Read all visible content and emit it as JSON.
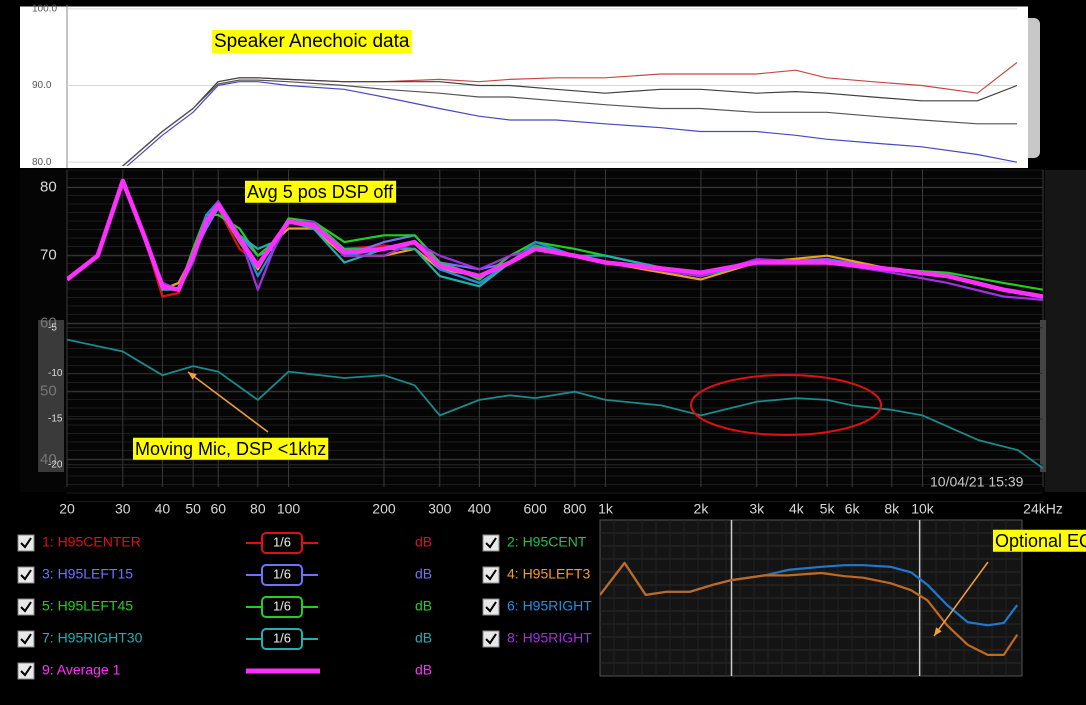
{
  "chart_data": [
    {
      "type": "line",
      "title": "Speaker  Anechoic data",
      "xscale": "log",
      "xlim": [
        20,
        20000
      ],
      "ylim": [
        79.5,
        100.5
      ],
      "yticks": [
        {
          "value": 100,
          "label": "100.0"
        },
        {
          "value": 90,
          "label": "90.0"
        },
        {
          "value": 80,
          "label": "80.0"
        }
      ],
      "x": [
        20,
        30,
        40,
        50,
        60,
        70,
        80,
        100,
        150,
        200,
        300,
        400,
        500,
        700,
        1000,
        1500,
        2000,
        3000,
        4000,
        5000,
        7000,
        10000,
        15000,
        20000
      ],
      "series": [
        {
          "color": "#c84848",
          "values": [
            76,
            79.5,
            84,
            87,
            90.5,
            91,
            91,
            90.8,
            90.5,
            90.5,
            90.8,
            90.5,
            90.8,
            91,
            91,
            91.5,
            91.5,
            91.5,
            92,
            91,
            90.5,
            90,
            89,
            93
          ]
        },
        {
          "color": "#404040",
          "values": [
            76,
            79.5,
            84,
            87,
            90.5,
            91,
            91,
            90.8,
            90.5,
            90.5,
            90.5,
            90,
            90,
            89.5,
            89,
            89.5,
            89.5,
            89,
            89.2,
            89,
            88.5,
            88,
            88,
            90
          ]
        },
        {
          "color": "#555555",
          "values": [
            76,
            79.5,
            84,
            87,
            90.2,
            90.7,
            90.7,
            90.5,
            90,
            89.5,
            89,
            88.5,
            88.5,
            88,
            87.5,
            87,
            87,
            86.5,
            86.5,
            86.5,
            86,
            85.5,
            85,
            85
          ]
        },
        {
          "color": "#4848c0",
          "values": [
            76,
            79,
            83.5,
            86.5,
            90,
            90.5,
            90.5,
            90,
            89.5,
            88.5,
            87,
            86,
            85.5,
            85.5,
            85,
            84.5,
            84,
            84,
            83.5,
            83,
            82.5,
            82,
            81,
            80
          ]
        }
      ]
    },
    {
      "type": "line",
      "annotation": "Avg 5 pos DSP off",
      "timestamp": "10/04/21 15:39",
      "xscale": "log",
      "xlim": [
        20,
        24000
      ],
      "ylim": [
        36,
        82.6
      ],
      "yticks": [
        80,
        70,
        60,
        50,
        40
      ],
      "xticks": [
        20,
        30,
        40,
        50,
        60,
        80,
        100,
        200,
        300,
        400,
        600,
        800,
        {
          "value": 1000,
          "label": "1k"
        },
        {
          "value": 2000,
          "label": "2k"
        },
        {
          "value": 3000,
          "label": "3k"
        },
        {
          "value": 4000,
          "label": "4k"
        },
        {
          "value": 5000,
          "label": "5k"
        },
        {
          "value": 6000,
          "label": "6k"
        },
        {
          "value": 8000,
          "label": "8k"
        },
        {
          "value": 10000,
          "label": "10k"
        },
        {
          "value": 24000,
          "label": "24kHz"
        }
      ],
      "grid": true,
      "x": [
        20,
        25,
        30,
        35,
        40,
        45,
        50,
        55,
        60,
        70,
        80,
        90,
        100,
        120,
        150,
        200,
        250,
        300,
        400,
        500,
        600,
        800,
        1000,
        2000,
        3000,
        5000,
        8000,
        12000,
        18000,
        24000
      ],
      "series": [
        {
          "name": "1: H95CENTER",
          "color": "#e01010",
          "smoothing": "1/6",
          "unit": "dB",
          "values": [
            66.5,
            70,
            81,
            73,
            64,
            64.5,
            70,
            75,
            77,
            71,
            69,
            72,
            75,
            74,
            71,
            71.5,
            71,
            68,
            66,
            69,
            71,
            70,
            69,
            67,
            69,
            69,
            68,
            67,
            65,
            64
          ]
        },
        {
          "name": "2: H95CENT",
          "color": "#20c050",
          "values": [
            66.5,
            70,
            81,
            73,
            66,
            65,
            70,
            75,
            77,
            72,
            68,
            72,
            75,
            75,
            71,
            71,
            72,
            69,
            67,
            69,
            71.5,
            70,
            69,
            67,
            69,
            69,
            68,
            67,
            65,
            64
          ]
        },
        {
          "name": "3: H95LEFT15",
          "color": "#7070ff",
          "smoothing": "1/6",
          "unit": "dB",
          "values": [
            66.5,
            70,
            81,
            73,
            65,
            66,
            70,
            74,
            77,
            73,
            70,
            71,
            75,
            75,
            70,
            72,
            73,
            69,
            68,
            69,
            71,
            70,
            69,
            67,
            69,
            69.5,
            68,
            67,
            65,
            64
          ]
        },
        {
          "name": "4: H95LEFT3",
          "color": "#f0a020",
          "values": [
            66.5,
            70,
            81,
            73,
            65,
            66,
            70,
            75,
            78,
            73,
            68,
            72,
            74,
            74,
            70,
            70,
            71,
            68,
            67,
            69,
            71,
            70,
            69,
            66.5,
            69,
            70,
            68,
            67,
            65,
            64
          ]
        },
        {
          "name": "5: H95LEFT45",
          "color": "#20d020",
          "smoothing": "1/6",
          "unit": "dB",
          "values": [
            66.5,
            70,
            81,
            73,
            65.5,
            65,
            71,
            76,
            76,
            74,
            70,
            72,
            75.5,
            75,
            72,
            73,
            73,
            69,
            66.5,
            70,
            72,
            71,
            70,
            67,
            69,
            69,
            68,
            67.5,
            66,
            65
          ]
        },
        {
          "name": "6: H95RIGHT",
          "color": "#2090e0",
          "values": [
            66.5,
            70,
            81,
            73,
            66,
            65,
            70,
            76,
            78,
            73,
            67,
            71,
            75,
            75,
            70,
            71,
            72,
            68,
            66,
            69,
            72,
            70,
            69,
            67,
            69,
            69,
            68,
            67,
            65,
            64
          ]
        },
        {
          "name": "7: H95RIGHT30",
          "color": "#20b0b0",
          "smoothing": "1/6",
          "unit": "dB",
          "values": [
            66.5,
            70,
            81,
            73,
            65,
            65,
            70,
            75,
            77,
            73,
            71,
            72,
            75,
            74,
            69,
            71,
            71,
            67,
            65.5,
            69,
            71,
            70,
            70,
            67,
            69,
            69,
            68,
            67,
            65,
            64
          ]
        },
        {
          "name": "8: H95RIGHT",
          "color": "#a030e0",
          "values": [
            66.5,
            70,
            81,
            73,
            66,
            65,
            69,
            75,
            78,
            73,
            65,
            71,
            75,
            75,
            70,
            70,
            72,
            70,
            68,
            70,
            71,
            70,
            69,
            67,
            69.5,
            69,
            67.5,
            66,
            64,
            63.5
          ]
        },
        {
          "name": "9: Average 1",
          "color": "#ff30ff",
          "unit": "dB",
          "values": [
            66.5,
            70,
            81,
            73,
            65.5,
            65,
            70,
            75,
            77.5,
            72.5,
            68.5,
            72,
            75,
            74.5,
            70.5,
            71,
            72,
            68.5,
            67,
            69,
            71,
            70,
            69,
            67.5,
            69,
            69,
            68,
            67,
            65,
            64
          ]
        }
      ]
    },
    {
      "type": "line",
      "annotation": "Moving Mic, DSP <1khz",
      "xscale": "log",
      "xlim": [
        20,
        24000
      ],
      "ylim": [
        -20.8,
        -3.6
      ],
      "yticks": [
        -5,
        -10,
        -15,
        -20
      ],
      "x": [
        20,
        30,
        40,
        50,
        60,
        80,
        100,
        150,
        200,
        250,
        300,
        400,
        500,
        600,
        800,
        1000,
        1500,
        2000,
        3000,
        4000,
        5000,
        6000,
        8000,
        10000,
        15000,
        20000,
        24000
      ],
      "series": [
        {
          "color": "#1a8a8a",
          "values": [
            -6.3,
            -7.6,
            -10.2,
            -9.2,
            -9.8,
            -12.9,
            -9.8,
            -10.5,
            -10.2,
            -11.3,
            -14.6,
            -12.9,
            -12.4,
            -12.7,
            -12.0,
            -12.9,
            -13.5,
            -14.6,
            -13.1,
            -12.7,
            -12.9,
            -13.5,
            -14.0,
            -14.6,
            -17.3,
            -18.4,
            -20.4
          ]
        }
      ]
    },
    {
      "type": "line",
      "title": "Optional EQ",
      "xscale": "log",
      "xlim": [
        200,
        35000
      ],
      "ylim": [
        -15,
        5
      ],
      "vlines": [
        1000,
        10000
      ],
      "x": [
        200,
        270,
        350,
        450,
        600,
        800,
        1000,
        1500,
        2000,
        3000,
        4000,
        5000,
        7000,
        9000,
        11000,
        14000,
        18000,
        23000,
        28000,
        33000
      ],
      "series": [
        {
          "color": "#1e78d0",
          "values": [
            -4.6,
            -0.5,
            -4.6,
            -4.2,
            -4.2,
            -3.3,
            -2.7,
            -2.1,
            -1.4,
            -1.0,
            -0.8,
            -0.8,
            -1.0,
            -1.7,
            -3.3,
            -5.9,
            -8.1,
            -8.5,
            -8.2,
            -5.9
          ]
        },
        {
          "color": "#c06a20",
          "values": [
            -4.6,
            -0.5,
            -4.6,
            -4.2,
            -4.2,
            -3.3,
            -2.7,
            -2.1,
            -2.1,
            -1.8,
            -2.2,
            -2.4,
            -3.1,
            -4.0,
            -5.3,
            -8.5,
            -11.0,
            -12.3,
            -12.3,
            -9.7
          ]
        }
      ]
    }
  ]
}
